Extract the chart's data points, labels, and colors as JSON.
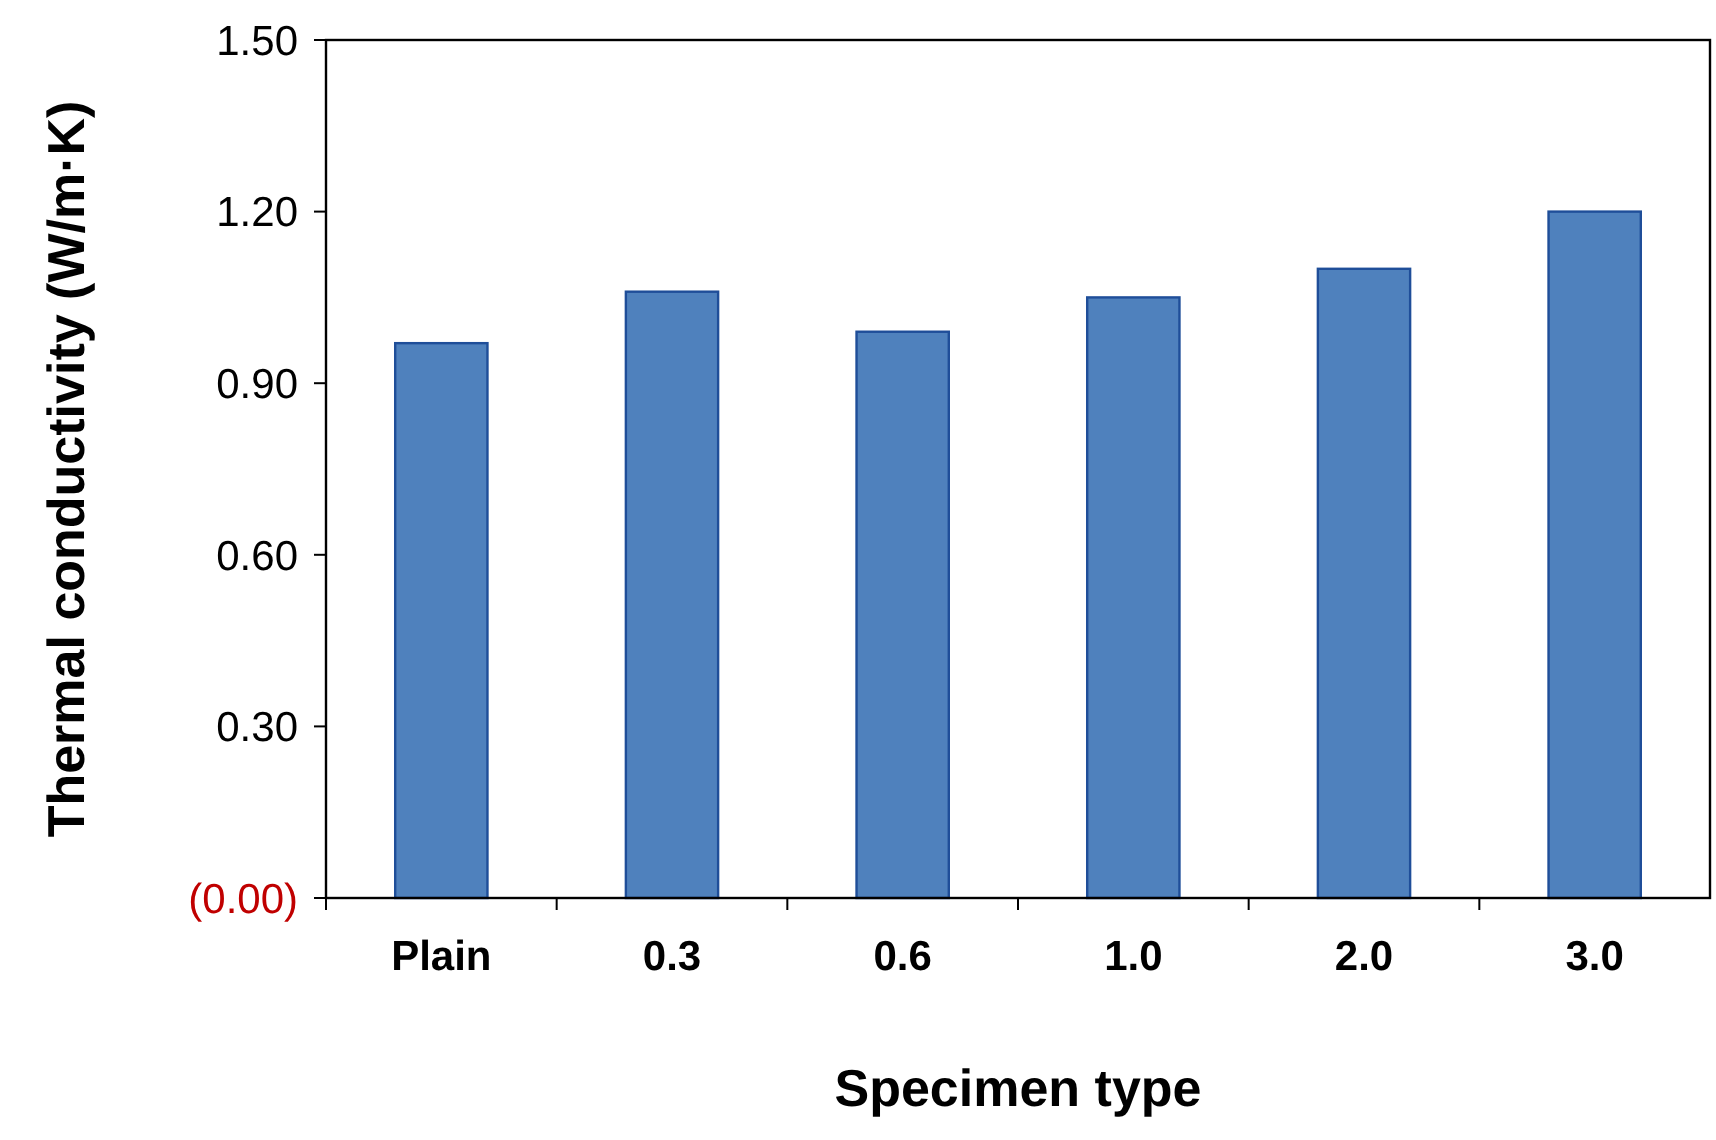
{
  "chart_data": {
    "type": "bar",
    "xlabel": "Specimen type",
    "ylabel": "Thermal conductivity (W/m·K)",
    "categories": [
      "Plain",
      "0.3",
      "0.6",
      "1.0",
      "2.0",
      "3.0"
    ],
    "values": [
      0.97,
      1.06,
      0.99,
      1.05,
      1.1,
      1.2
    ],
    "color": "#4f81bd",
    "ylim": [
      0,
      1.5
    ],
    "yticks": [
      {
        "value": 0,
        "label": "(0.00)"
      },
      {
        "value": 0.3,
        "label": "0.30"
      },
      {
        "value": 0.6,
        "label": "0.60"
      },
      {
        "value": 0.9,
        "label": "0.90"
      },
      {
        "value": 1.2,
        "label": "1.20"
      },
      {
        "value": 1.5,
        "label": "1.50"
      }
    ],
    "grid": false
  }
}
